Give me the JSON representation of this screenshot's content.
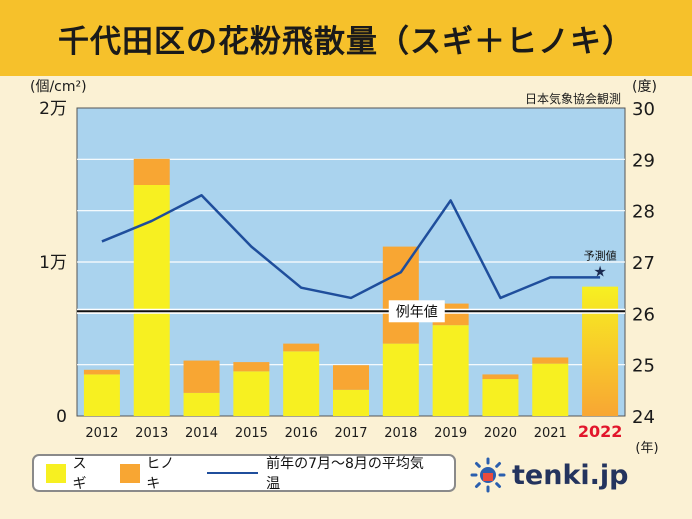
{
  "title": "千代田区の花粉飛散量（スギ＋ヒノキ）",
  "source": "日本気象協会観測",
  "chart_data": {
    "type": "bar",
    "categories": [
      "2012",
      "2013",
      "2014",
      "2015",
      "2016",
      "2017",
      "2018",
      "2019",
      "2020",
      "2021",
      "2022"
    ],
    "series": [
      {
        "name": "スギ",
        "values": [
          2700,
          15000,
          1500,
          2900,
          4200,
          1700,
          4700,
          5900,
          2400,
          3400,
          6800
        ]
      },
      {
        "name": "ヒノキ",
        "values": [
          300,
          1700,
          2100,
          600,
          500,
          1600,
          6300,
          1400,
          300,
          400,
          1600
        ]
      }
    ],
    "line_series": {
      "name": "前年の7月〜8月の平均気温",
      "values": [
        27.4,
        27.8,
        28.3,
        27.3,
        26.5,
        26.3,
        26.8,
        28.2,
        26.3,
        26.7,
        26.7
      ],
      "axis": "right"
    },
    "average_line": {
      "label": "例年値",
      "value": 6800
    },
    "annotation": {
      "label": "予測値",
      "category": "2022",
      "marker": "star"
    },
    "highlight_category": "2022",
    "highlight_color": "#e2162b",
    "left_axis": {
      "unit": "(個/cm²)",
      "ticks": [
        0,
        10000,
        20000
      ],
      "tick_labels": [
        "0",
        "1万",
        "2万"
      ],
      "ylim": [
        0,
        20000
      ]
    },
    "right_axis": {
      "unit": "(度)",
      "ticks": [
        24,
        25,
        26,
        27,
        28,
        29,
        30
      ],
      "ylim": [
        24,
        30
      ]
    },
    "x_unit": "(年)",
    "colors": {
      "sugi": "#f7f021",
      "hinoki": "#f8a633",
      "line": "#1f4e9c",
      "plot_bg": "#aad3ee",
      "title_bg": "#f6c12b"
    }
  },
  "legend": {
    "sugi": "スギ",
    "hinoki": "ヒノキ",
    "line": "前年の7月〜8月の平均気温"
  },
  "logo": {
    "text": "tenki.jp",
    "icon": "tenki-sun-icon"
  }
}
